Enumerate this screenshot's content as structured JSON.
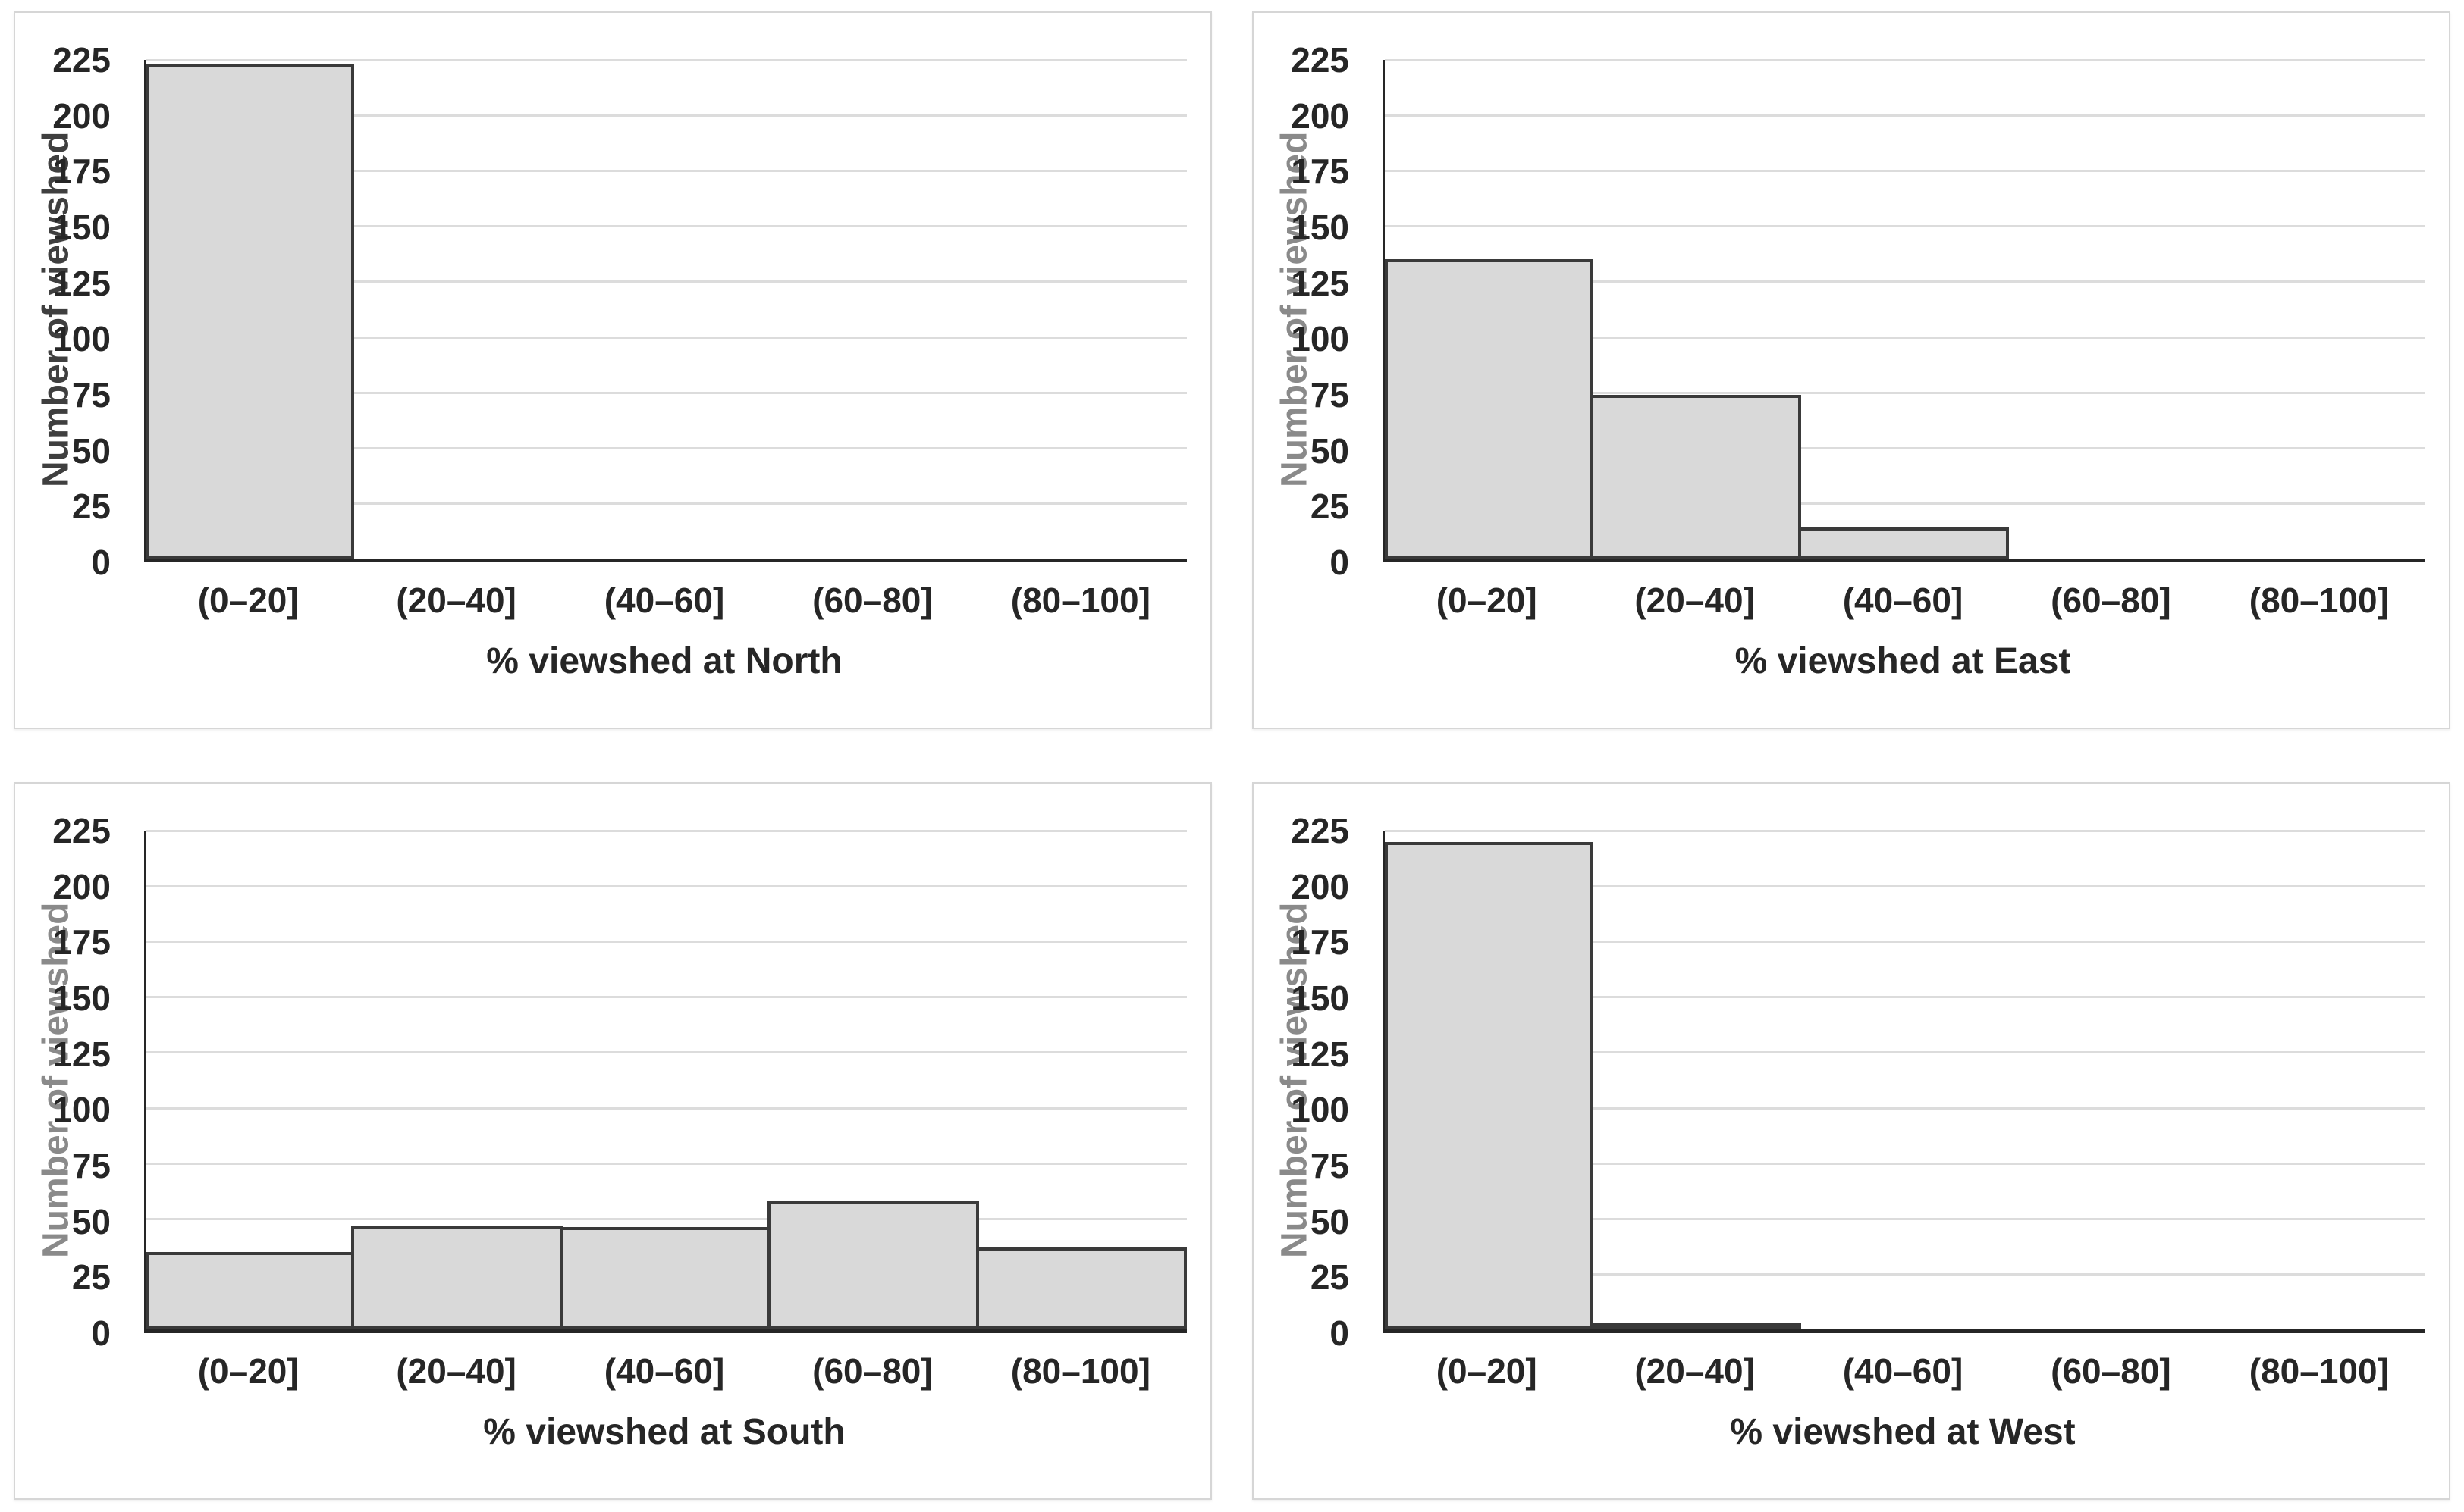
{
  "colors": {
    "bar_fill": "#d9d9d9",
    "bar_border": "#3a3a3a",
    "gridline": "#dcdcdc",
    "axis_line": "#262626",
    "tick_label": "#262626",
    "ylabel_dark": "#3f3f3f",
    "ylabel_gray": "#8a8a8a"
  },
  "chart_data": [
    {
      "type": "bar",
      "title": "",
      "categories": [
        "(0–20]",
        "(20–40]",
        "(40–60]",
        "(60–80]",
        "(80–100]"
      ],
      "values": [
        223,
        0,
        0,
        0,
        0
      ],
      "xlabel": "% viewshed at North",
      "ylabel": "Number of viewshed",
      "ylabel_muted": false,
      "ylim": [
        0,
        225
      ],
      "yticks": [
        0,
        25,
        50,
        75,
        100,
        125,
        150,
        175,
        200,
        225
      ],
      "grid": true,
      "legend": false
    },
    {
      "type": "bar",
      "title": "",
      "categories": [
        "(0–20]",
        "(20–40]",
        "(40–60]",
        "(60–80]",
        "(80–100]"
      ],
      "values": [
        135,
        74,
        14,
        0,
        0
      ],
      "xlabel": "% viewshed at East",
      "ylabel": "Number of viewshed",
      "ylabel_muted": true,
      "ylim": [
        0,
        225
      ],
      "yticks": [
        0,
        25,
        50,
        75,
        100,
        125,
        150,
        175,
        200,
        225
      ],
      "grid": true,
      "legend": false
    },
    {
      "type": "bar",
      "title": "",
      "categories": [
        "(0–20]",
        "(20–40]",
        "(40–60]",
        "(60–80]",
        "(80–100]"
      ],
      "values": [
        35,
        47,
        46,
        58,
        37
      ],
      "xlabel": "% viewshed at South",
      "ylabel": "Number of viewshed",
      "ylabel_muted": true,
      "ylim": [
        0,
        225
      ],
      "yticks": [
        0,
        25,
        50,
        75,
        100,
        125,
        150,
        175,
        200,
        225
      ],
      "grid": true,
      "legend": false
    },
    {
      "type": "bar",
      "title": "",
      "categories": [
        "(0–20]",
        "(20–40]",
        "(40–60]",
        "(60–80]",
        "(80–100]"
      ],
      "values": [
        220,
        3,
        0,
        0,
        0
      ],
      "xlabel": "% viewshed at West",
      "ylabel": "Number of viewshed",
      "ylabel_muted": true,
      "ylim": [
        0,
        225
      ],
      "yticks": [
        0,
        25,
        50,
        75,
        100,
        125,
        150,
        175,
        200,
        225
      ],
      "grid": true,
      "legend": false
    }
  ]
}
